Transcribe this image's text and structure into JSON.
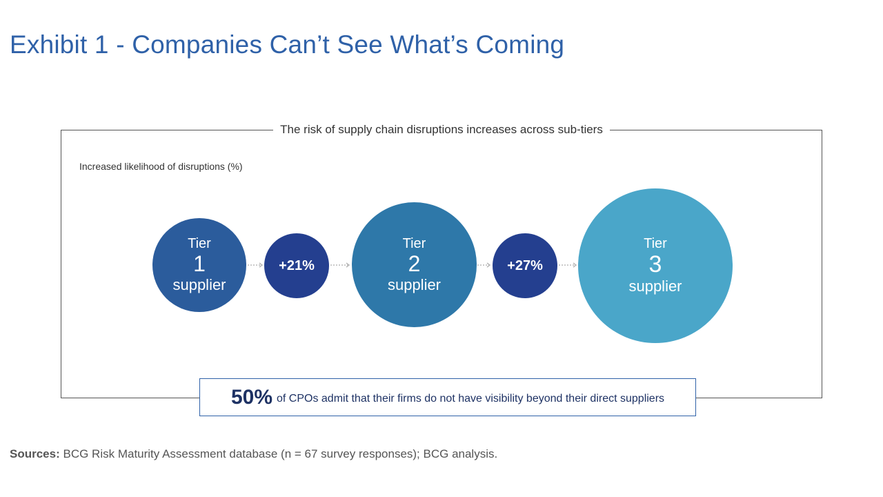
{
  "exhibit": {
    "title": "Exhibit 1 - Companies Can’t See What’s Coming"
  },
  "panel": {
    "title": "The risk of supply chain disruptions increases across sub-tiers",
    "axis_label": "Increased likelihood of disruptions (%)"
  },
  "tiers": [
    {
      "word": "Tier",
      "number": "1",
      "label": "supplier",
      "color": "#2b5c9c"
    },
    {
      "word": "Tier",
      "number": "2",
      "label": "supplier",
      "color": "#2e78a9"
    },
    {
      "word": "Tier",
      "number": "3",
      "label": "supplier",
      "color": "#4aa6c9"
    }
  ],
  "increases": [
    {
      "label": "+21%",
      "value": 21,
      "color": "#243f8f"
    },
    {
      "label": "+27%",
      "value": 27,
      "color": "#243f8f"
    }
  ],
  "callout": {
    "percent": "50%",
    "text": "of CPOs admit that their firms do not have visibility beyond their direct suppliers"
  },
  "sources": {
    "label": "Sources:",
    "text": "BCG Risk Maturity Assessment database (n = 67 survey responses); BCG analysis."
  }
}
